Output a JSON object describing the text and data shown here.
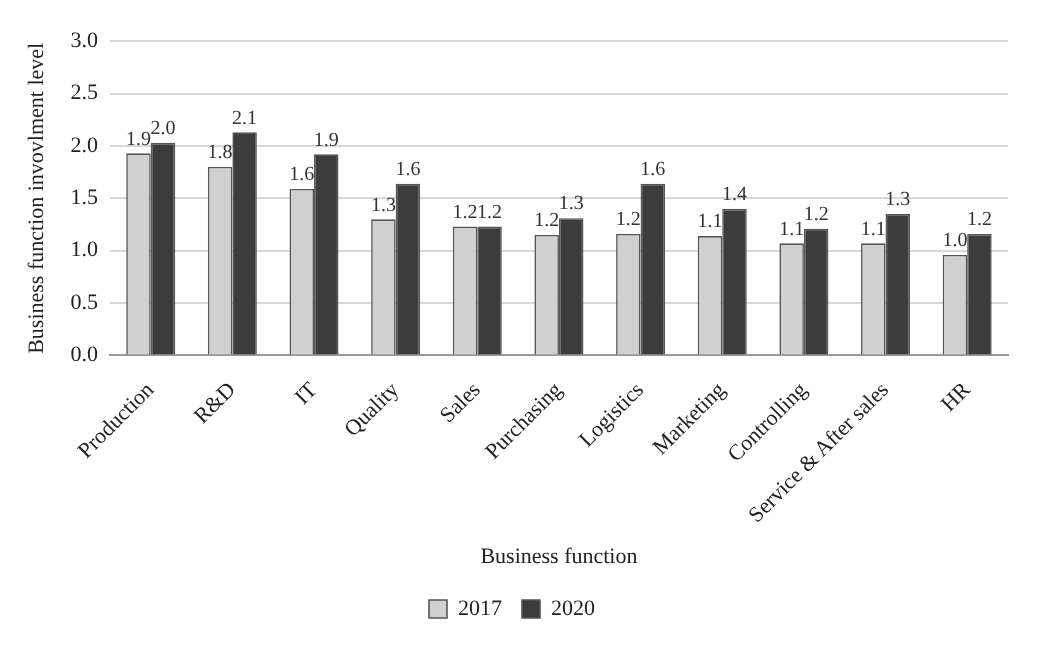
{
  "chart_data": {
    "type": "bar",
    "xlabel": "Business function",
    "ylabel": "Business function invovlment level",
    "categories": [
      "Production",
      "R&D",
      "IT",
      "Quality",
      "Sales",
      "Purchasing",
      "Logistics",
      "Marketing",
      "Controlling",
      "Service & After sales",
      "HR"
    ],
    "series": [
      {
        "name": "2017",
        "color": "#d0d0d0",
        "values": [
          1.93,
          1.8,
          1.59,
          1.3,
          1.23,
          1.15,
          1.16,
          1.14,
          1.07,
          1.07,
          0.96
        ],
        "value_labels": [
          "1.9",
          "1.8",
          "1.6",
          "1.3",
          "1.2",
          "1.2",
          "1.2",
          "1.1",
          "1.1",
          "1.1",
          "1.0"
        ]
      },
      {
        "name": "2020",
        "color": "#3c3c3c",
        "values": [
          2.03,
          2.13,
          1.92,
          1.64,
          1.23,
          1.31,
          1.64,
          1.4,
          1.21,
          1.35,
          1.16
        ],
        "value_labels": [
          "2.0",
          "2.1",
          "1.9",
          "1.6",
          "1.2",
          "1.3",
          "1.6",
          "1.4",
          "1.2",
          "1.3",
          "1.2"
        ]
      }
    ],
    "ylim": [
      0,
      3
    ],
    "yticks": [
      {
        "value": 0,
        "label": "0.0"
      },
      0.5,
      {
        "value": 1,
        "label": "1.0"
      },
      1.5,
      {
        "value": 2,
        "label": "2.0"
      },
      2.5,
      {
        "value": 3,
        "label": "3.0"
      }
    ],
    "grid": "y",
    "legend": "bottom"
  }
}
